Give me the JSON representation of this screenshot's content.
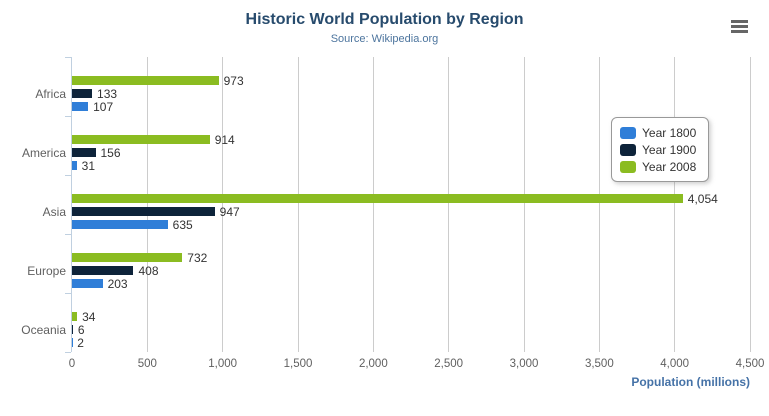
{
  "header": {
    "title": "Historic World Population by Region",
    "subtitle": "Source: Wikipedia.org"
  },
  "export_menu_icon": "hamburger-icon",
  "chart_data": {
    "type": "bar",
    "orientation": "horizontal",
    "title": "Historic World Population by Region",
    "subtitle": "Source: Wikipedia.org",
    "categories": [
      "Africa",
      "America",
      "Asia",
      "Europe",
      "Oceania"
    ],
    "series": [
      {
        "name": "Year 1800",
        "color": "#2f7ed8",
        "values": [
          107,
          31,
          635,
          203,
          2
        ],
        "labels": [
          "107",
          "31",
          "635",
          "203",
          "2"
        ]
      },
      {
        "name": "Year 1900",
        "color": "#0d233a",
        "values": [
          133,
          156,
          947,
          408,
          6
        ],
        "labels": [
          "133",
          "156",
          "947",
          "408",
          "6"
        ]
      },
      {
        "name": "Year 2008",
        "color": "#8bbc21",
        "values": [
          973,
          914,
          4054,
          732,
          34
        ],
        "labels": [
          "973",
          "914",
          "4,054",
          "732",
          "34"
        ]
      }
    ],
    "bar_order_top_to_bottom": [
      "Year 2008",
      "Year 1900",
      "Year 1800"
    ],
    "xlabel": "Population (millions)",
    "ylabel": "",
    "xlim": [
      0,
      4500
    ],
    "x_ticks": [
      {
        "value": 0,
        "label": "0"
      },
      {
        "value": 500,
        "label": "500"
      },
      {
        "value": 1000,
        "label": "1,000"
      },
      {
        "value": 1500,
        "label": "1,500"
      },
      {
        "value": 2000,
        "label": "2,000"
      },
      {
        "value": 2500,
        "label": "2,500"
      },
      {
        "value": 3000,
        "label": "3,000"
      },
      {
        "value": 3500,
        "label": "3,500"
      },
      {
        "value": 4000,
        "label": "4,000"
      },
      {
        "value": 4500,
        "label": "4,500"
      }
    ],
    "grid": true,
    "legend_position": "inside-right",
    "colors": {
      "title": "#274b6d",
      "subtitle": "#4d759e",
      "axis_title": "#4572a7",
      "tick_label": "#606060",
      "category_label": "#606060",
      "data_label": "#333333",
      "gridline": "#cccccc",
      "axis_line": "#c0d0e0",
      "legend_border": "#999999",
      "menu_icon": "#666666"
    }
  }
}
